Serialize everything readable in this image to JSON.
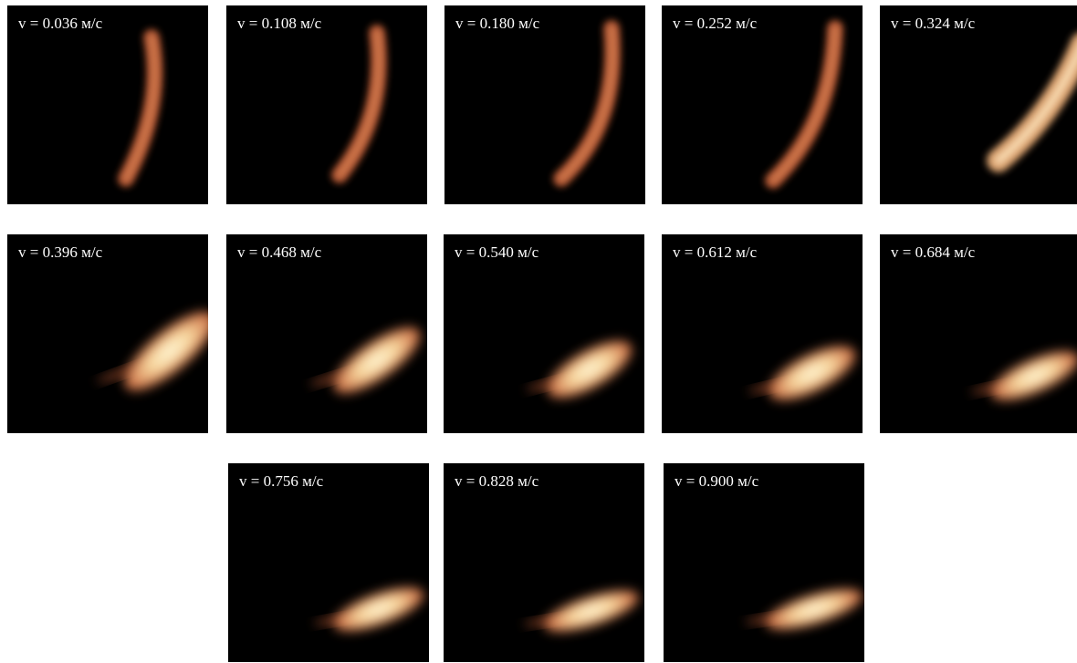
{
  "panels": [
    {
      "label": "v = 0.036 м/с"
    },
    {
      "label": "v = 0.108 м/с"
    },
    {
      "label": "v = 0.180 м/с"
    },
    {
      "label": "v = 0.252 м/с"
    },
    {
      "label": "v = 0.324 м/с"
    },
    {
      "label": "v = 0.396 м/с"
    },
    {
      "label": "v = 0.468 м/с"
    },
    {
      "label": "v = 0.540 м/с"
    },
    {
      "label": "v = 0.612 м/с"
    },
    {
      "label": "v = 0.684 м/с"
    },
    {
      "label": "v = 0.756 м/с"
    },
    {
      "label": "v = 0.828 м/с"
    },
    {
      "label": "v = 0.900 м/с"
    }
  ]
}
